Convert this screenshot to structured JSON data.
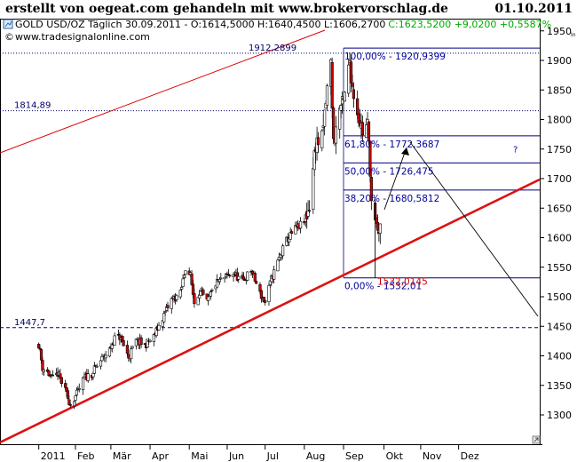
{
  "header": {
    "left": "erstellt von oegeat.com gehandeln mit www.brokervorschlag.de",
    "date": "01.10.2011"
  },
  "info": {
    "instrument": "GOLD USD/OZ Täglich  30.09.2011 - O:1614,5000 H:1640,4500 L:1606,2700",
    "change": "C:1623,5200 +9,0200 +0,5587%",
    "site": "www.tradesignalonline.com",
    "tiny_label": "In"
  },
  "colors": {
    "up_candle": "#ffffff",
    "down_candle": "#cc0000",
    "wick": "#000000",
    "trend_up": "#dd0000",
    "fib_text": "#000099",
    "change_text": "#00aa00",
    "level_line": "#000080"
  },
  "chart_data": {
    "type": "candlestick",
    "title": "GOLD USD/OZ Täglich",
    "xlabel": "",
    "ylabel": "",
    "x_ticks": [
      "2011",
      "Feb",
      "Mär",
      "Apr",
      "Mai",
      "Jun",
      "Jul",
      "Aug",
      "Sep",
      "Okt",
      "Nov",
      "Dez"
    ],
    "y_ticks": [
      1300,
      1350,
      1400,
      1450,
      1500,
      1550,
      1600,
      1650,
      1700,
      1750,
      1800,
      1850,
      1900,
      1950
    ],
    "ylim": [
      1255,
      1975
    ],
    "grid": false,
    "price_path": [
      [
        "2011-01-03",
        1420
      ],
      [
        "2011-01-06",
        1380
      ],
      [
        "2011-01-10",
        1372
      ],
      [
        "2011-01-14",
        1360
      ],
      [
        "2011-01-18",
        1370
      ],
      [
        "2011-01-24",
        1340
      ],
      [
        "2011-01-28",
        1318
      ],
      [
        "2011-02-02",
        1335
      ],
      [
        "2011-02-08",
        1362
      ],
      [
        "2011-02-14",
        1370
      ],
      [
        "2011-02-21",
        1392
      ],
      [
        "2011-02-28",
        1410
      ],
      [
        "2011-03-04",
        1430
      ],
      [
        "2011-03-08",
        1432
      ],
      [
        "2011-03-15",
        1398
      ],
      [
        "2011-03-21",
        1425
      ],
      [
        "2011-03-28",
        1418
      ],
      [
        "2011-04-04",
        1432
      ],
      [
        "2011-04-11",
        1465
      ],
      [
        "2011-04-18",
        1495
      ],
      [
        "2011-04-25",
        1505
      ],
      [
        "2011-04-29",
        1550
      ],
      [
        "2011-05-03",
        1535
      ],
      [
        "2011-05-06",
        1490
      ],
      [
        "2011-05-10",
        1510
      ],
      [
        "2011-05-16",
        1490
      ],
      [
        "2011-05-23",
        1522
      ],
      [
        "2011-05-30",
        1532
      ],
      [
        "2011-06-06",
        1540
      ],
      [
        "2011-06-13",
        1525
      ],
      [
        "2011-06-20",
        1545
      ],
      [
        "2011-06-27",
        1505
      ],
      [
        "2011-07-01",
        1490
      ],
      [
        "2011-07-06",
        1530
      ],
      [
        "2011-07-12",
        1565
      ],
      [
        "2011-07-18",
        1595
      ],
      [
        "2011-07-25",
        1615
      ],
      [
        "2011-08-01",
        1625
      ],
      [
        "2011-08-05",
        1655
      ],
      [
        "2011-08-10",
        1760
      ],
      [
        "2011-08-15",
        1765
      ],
      [
        "2011-08-19",
        1850
      ],
      [
        "2011-08-22",
        1895
      ],
      [
        "2011-08-24",
        1760
      ],
      [
        "2011-08-29",
        1820
      ],
      [
        "2011-09-01",
        1825
      ],
      [
        "2011-09-06",
        1900
      ],
      [
        "2011-09-08",
        1855
      ],
      [
        "2011-09-12",
        1815
      ],
      [
        "2011-09-16",
        1780
      ],
      [
        "2011-09-20",
        1790
      ],
      [
        "2011-09-22",
        1720
      ],
      [
        "2011-09-23",
        1660
      ],
      [
        "2011-09-26",
        1620
      ],
      [
        "2011-09-28",
        1605
      ],
      [
        "2011-09-30",
        1623
      ]
    ],
    "horizontal_levels": [
      {
        "label": "1912,2899",
        "value": 1912.2899,
        "style": "dotted"
      },
      {
        "label": "1814,89",
        "value": 1814.89,
        "style": "dotted"
      },
      {
        "label": "1447,7",
        "value": 1447.7,
        "style": "dashed"
      }
    ],
    "fibonacci": [
      {
        "label": "100,00% - 1920,9399",
        "value": 1920.9399
      },
      {
        "label": "61,80% - 1772,3687",
        "value": 1772.3687
      },
      {
        "label": "50,00% - 1726,475",
        "value": 1726.475
      },
      {
        "label": "38,20% - 1680,5812",
        "value": 1680.5812
      },
      {
        "label": "0,00% - 1532,01",
        "value": 1532.01
      }
    ],
    "low_label": {
      "label": "1532,0145",
      "value": 1532.0145
    },
    "question_mark": "?"
  }
}
